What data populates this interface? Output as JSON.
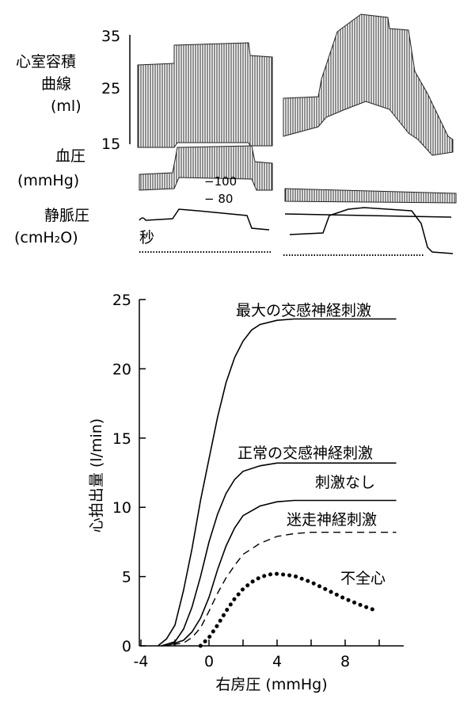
{
  "top_panel": {
    "volume_label_line1": "心室容積",
    "volume_label_line2": "曲線",
    "volume_label_line3": "(ml)",
    "volume_ticks": [
      "35",
      "25",
      "15"
    ],
    "bp_label_line1": "血圧",
    "bp_label_line2": "(mmHg)",
    "bp_marks": [
      "−100",
      "− 80"
    ],
    "venous_label_line1": "静脈圧",
    "venous_label_line2": "(cmH₂O)",
    "time_label": "秒"
  },
  "chart_data": {
    "type": "line",
    "xlabel": "右房圧 (mmHg)",
    "ylabel": "心拍出量 (l/min)",
    "xlim": [
      -4,
      11
    ],
    "ylim": [
      0,
      25
    ],
    "x_ticks": [
      "-4",
      "0",
      "4",
      "8"
    ],
    "y_ticks": [
      "0",
      "5",
      "10",
      "15",
      "20",
      "25"
    ],
    "series": [
      {
        "name": "最大の交感神経刺激",
        "style": "solid",
        "points": [
          [
            -3,
            0
          ],
          [
            -2.5,
            0.5
          ],
          [
            -2,
            1.5
          ],
          [
            -1.5,
            4
          ],
          [
            -1,
            7
          ],
          [
            -0.5,
            10.5
          ],
          [
            0,
            13.5
          ],
          [
            0.5,
            16.5
          ],
          [
            1,
            19
          ],
          [
            1.5,
            20.8
          ],
          [
            2,
            22
          ],
          [
            2.5,
            22.8
          ],
          [
            3,
            23.2
          ],
          [
            4,
            23.5
          ],
          [
            5,
            23.6
          ],
          [
            11,
            23.6
          ]
        ]
      },
      {
        "name": "正常の交感神経刺激",
        "style": "solid",
        "points": [
          [
            -2.8,
            0
          ],
          [
            -2,
            0.3
          ],
          [
            -1.5,
            1.2
          ],
          [
            -1,
            2.8
          ],
          [
            -0.5,
            5
          ],
          [
            0,
            7.5
          ],
          [
            0.5,
            9.5
          ],
          [
            1,
            11
          ],
          [
            1.5,
            12
          ],
          [
            2,
            12.6
          ],
          [
            3,
            13
          ],
          [
            4,
            13.2
          ],
          [
            11,
            13.2
          ]
        ]
      },
      {
        "name": "刺激なし",
        "style": "solid",
        "points": [
          [
            -2.5,
            0
          ],
          [
            -1.5,
            0.4
          ],
          [
            -1,
            1
          ],
          [
            -0.5,
            2
          ],
          [
            0,
            3.5
          ],
          [
            0.5,
            5.5
          ],
          [
            1,
            7.2
          ],
          [
            1.5,
            8.5
          ],
          [
            2,
            9.4
          ],
          [
            3,
            10.1
          ],
          [
            4,
            10.4
          ],
          [
            5,
            10.5
          ],
          [
            11,
            10.5
          ]
        ]
      },
      {
        "name": "迷走神経刺激",
        "style": "dashed",
        "points": [
          [
            -2.8,
            0
          ],
          [
            -1.5,
            0.2
          ],
          [
            -1,
            0.6
          ],
          [
            -0.5,
            1.3
          ],
          [
            0,
            2.5
          ],
          [
            0.5,
            3.8
          ],
          [
            1,
            4.9
          ],
          [
            1.5,
            5.8
          ],
          [
            2,
            6.6
          ],
          [
            3,
            7.4
          ],
          [
            4,
            7.9
          ],
          [
            5,
            8.1
          ],
          [
            6,
            8.2
          ],
          [
            11,
            8.2
          ]
        ]
      },
      {
        "name": "不全心",
        "style": "dotted",
        "points": [
          [
            -0.5,
            0
          ],
          [
            0,
            0.6
          ],
          [
            0.5,
            1.5
          ],
          [
            1,
            2.5
          ],
          [
            1.5,
            3.4
          ],
          [
            2,
            4.1
          ],
          [
            2.5,
            4.6
          ],
          [
            3,
            4.95
          ],
          [
            3.5,
            5.15
          ],
          [
            4,
            5.2
          ],
          [
            5,
            5.05
          ],
          [
            6,
            4.6
          ],
          [
            7,
            4.0
          ],
          [
            8,
            3.4
          ],
          [
            9,
            2.9
          ],
          [
            9.7,
            2.6
          ]
        ]
      }
    ]
  }
}
